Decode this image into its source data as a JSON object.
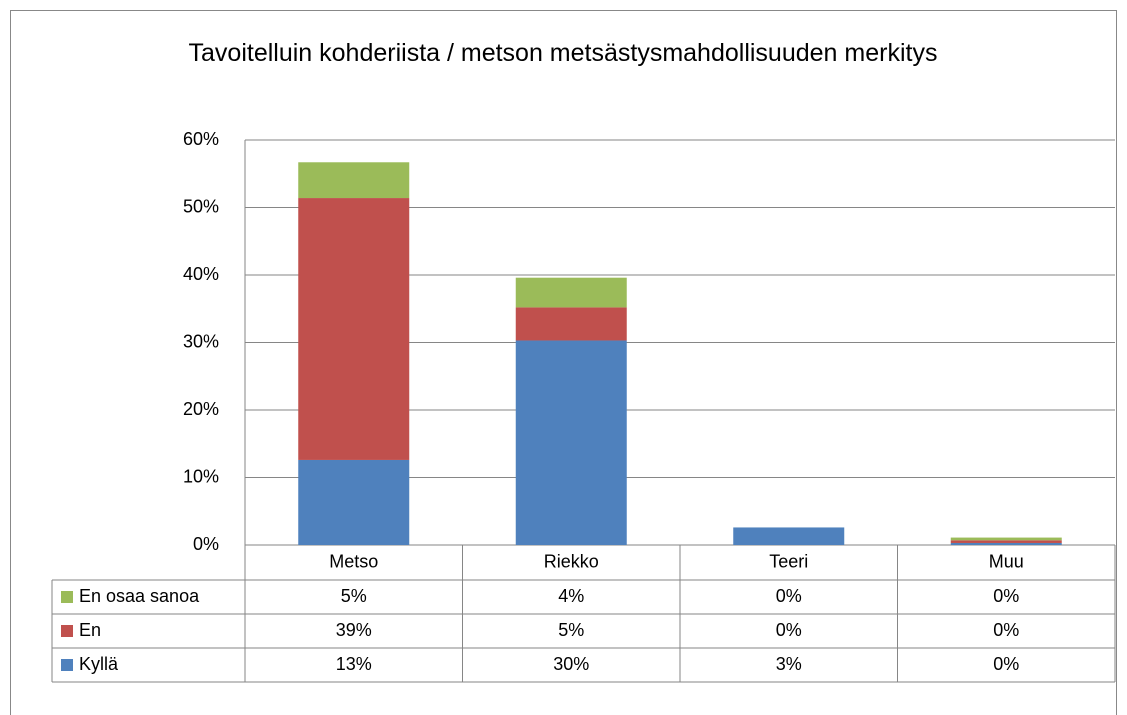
{
  "chart_data": {
    "type": "bar",
    "stacked": true,
    "title": "Tavoitelluin kohderiista / metson metsästysmahdollisuuden merkitys",
    "categories": [
      "Metso",
      "Riekko",
      "Teeri",
      "Muu"
    ],
    "series": [
      {
        "name": "Kyllä",
        "color": "#4f81bd",
        "values": [
          12.6,
          30.3,
          2.6,
          0.3
        ],
        "value_labels": [
          "13%",
          "30%",
          "3%",
          "0%"
        ]
      },
      {
        "name": "En",
        "color": "#c0504d",
        "values": [
          38.8,
          4.9,
          0,
          0.4
        ],
        "value_labels": [
          "39%",
          "5%",
          "0%",
          "0%"
        ]
      },
      {
        "name": "En osaa sanoa",
        "color": "#9bbb59",
        "values": [
          5.3,
          4.4,
          0,
          0.4
        ],
        "value_labels": [
          "5%",
          "4%",
          "0%",
          "0%"
        ]
      }
    ],
    "ylim": [
      0,
      60
    ],
    "yticks": [
      {
        "value": 0,
        "label": "0%"
      },
      {
        "value": 10,
        "label": "10%"
      },
      {
        "value": 20,
        "label": "20%"
      },
      {
        "value": 30,
        "label": "30%"
      },
      {
        "value": 40,
        "label": "40%"
      },
      {
        "value": 50,
        "label": "50%"
      },
      {
        "value": 60,
        "label": "60%"
      }
    ],
    "grid": true,
    "data_table": true
  }
}
